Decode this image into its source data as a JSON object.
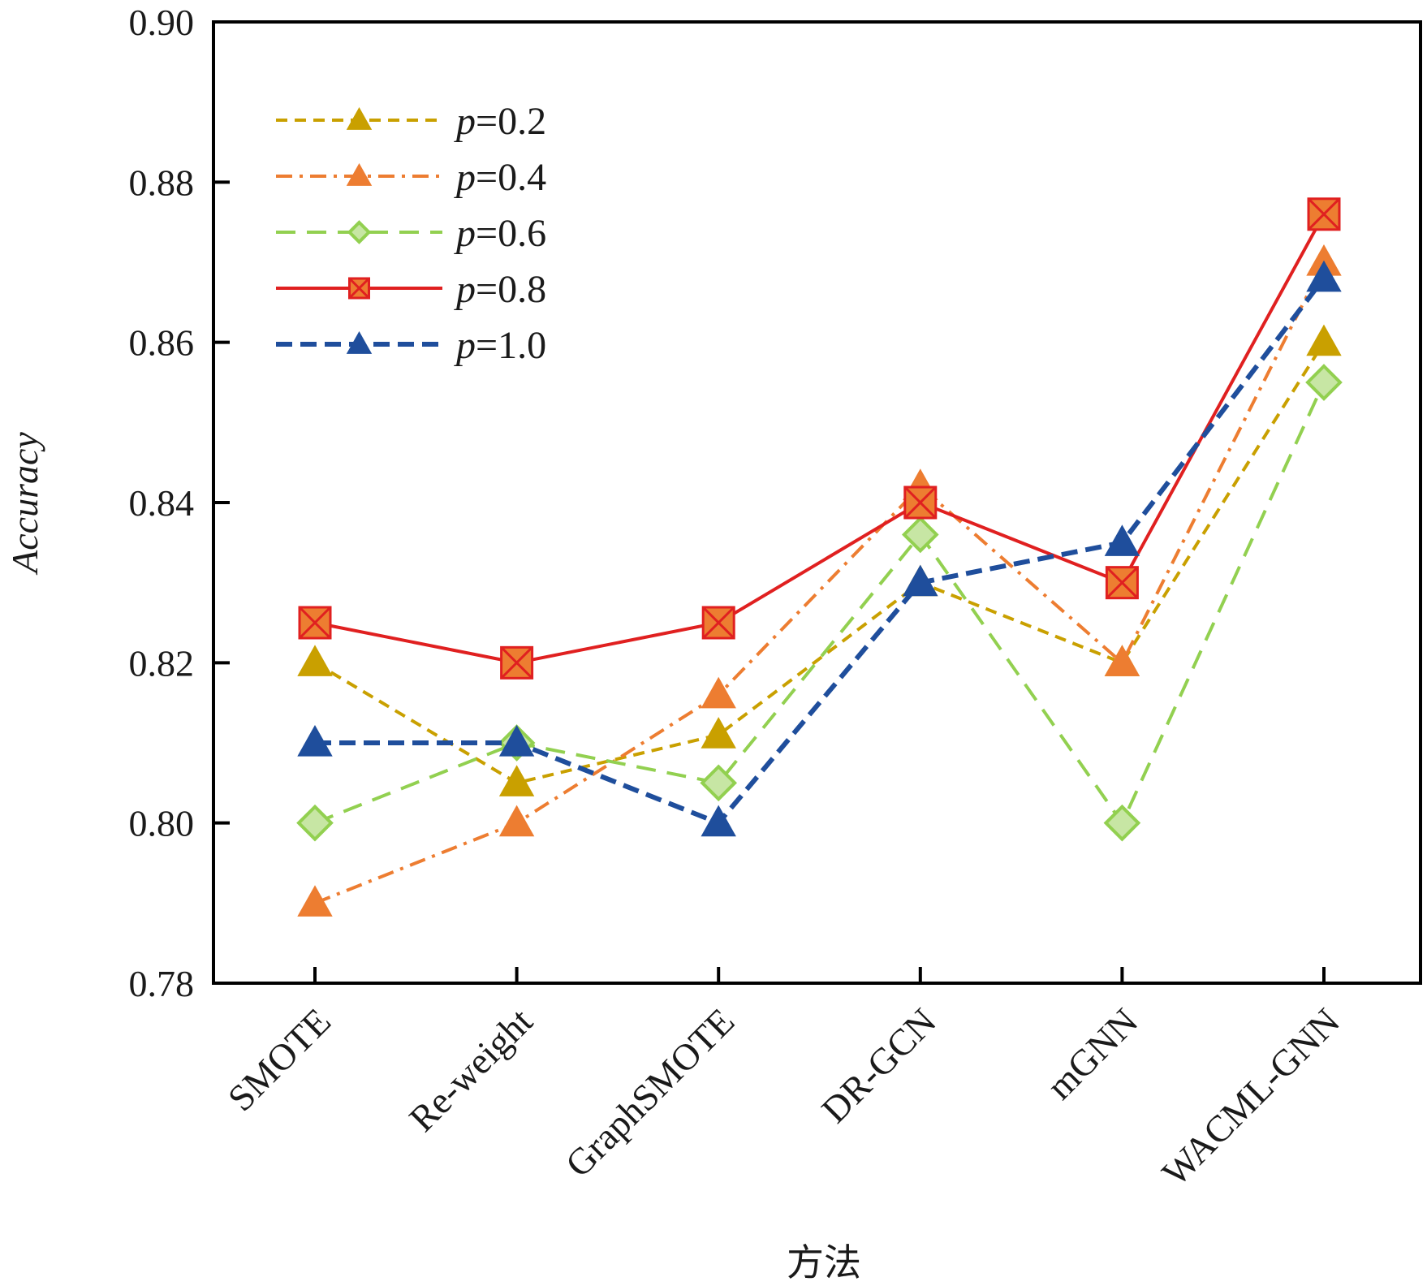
{
  "chart_data": {
    "type": "line",
    "title": "",
    "xlabel": "方法",
    "ylabel": "Accuracy",
    "categories": [
      "SMOTE",
      "Re-weight",
      "GraphSMOTE",
      "DR-GCN",
      "mGNN",
      "WACML-GNN"
    ],
    "ylim": [
      0.78,
      0.9
    ],
    "yticks": [
      "0.78",
      "0.80",
      "0.82",
      "0.84",
      "0.86",
      "0.88",
      "0.90"
    ],
    "grid": false,
    "legend_position": "top-left",
    "series": [
      {
        "name": "p=0.2",
        "name_italic": "p",
        "name_rest": "=0.2",
        "color": "#c9a000",
        "line": "dashed",
        "marker": "triangle",
        "values": [
          0.82,
          0.805,
          0.811,
          0.83,
          0.82,
          0.86
        ]
      },
      {
        "name": "p=0.4",
        "name_italic": "p",
        "name_rest": "=0.4",
        "color": "#ed7d31",
        "line": "dashdot",
        "marker": "triangle",
        "values": [
          0.79,
          0.8,
          0.816,
          0.842,
          0.82,
          0.87
        ]
      },
      {
        "name": "p=0.6",
        "name_italic": "p",
        "name_rest": "=0.6",
        "color": "#92d050",
        "line": "longdash",
        "marker": "diamond",
        "values": [
          0.8,
          0.81,
          0.805,
          0.836,
          0.8,
          0.855
        ]
      },
      {
        "name": "p=0.8",
        "name_italic": "p",
        "name_rest": "=0.8",
        "color": "#e02020",
        "line": "solid",
        "marker": "square-x",
        "values": [
          0.825,
          0.82,
          0.825,
          0.84,
          0.83,
          0.876
        ]
      },
      {
        "name": "p=1.0",
        "name_italic": "p",
        "name_rest": "=1.0",
        "color": "#1f4e9c",
        "line": "dashed-bold",
        "marker": "triangle",
        "values": [
          0.81,
          0.81,
          0.8,
          0.83,
          0.835,
          0.868
        ]
      }
    ]
  }
}
